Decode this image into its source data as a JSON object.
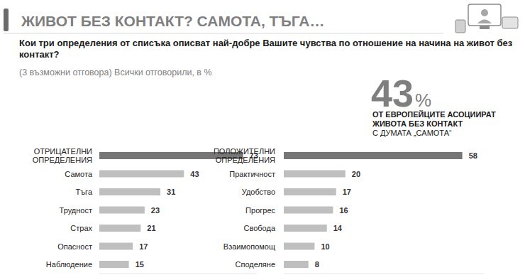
{
  "header": {
    "title": "ЖИВОТ БЕЗ КОНТАКТ? САМОТА, ТЪГА…",
    "question": "Кои три определения от списъка описват най-добре Вашите чувства по отношение на начина на живот без контакт?",
    "note": "(3 възможни отговора) Всички отговорили, в %",
    "callout": {
      "value": 43,
      "unit": "%",
      "lines": [
        "ОТ ЕВРОПЕЙЦИТЕ АСОЦИИРАТ",
        "ЖИВОТА БЕЗ КОНТАКТ",
        "С ДУМАТА „САМОТА“"
      ]
    }
  },
  "chart_data": [
    {
      "type": "bar",
      "orientation": "horizontal",
      "categories": [
        "ОТРИЦАТЕЛНИ ОПРЕДЕЛЕНИЯ",
        "Самота",
        "Тъга",
        "Трудност",
        "Страх",
        "Опасност",
        "Наблюдение"
      ],
      "values": [
        73,
        43,
        31,
        23,
        21,
        17,
        15
      ],
      "colors": [
        "#767676",
        "#bfbfbf",
        "#bfbfbf",
        "#bfbfbf",
        "#bfbfbf",
        "#bfbfbf",
        "#bfbfbf"
      ],
      "xlim": [
        0,
        80
      ],
      "data_labels": true,
      "tick_labels": "y",
      "grid": false
    },
    {
      "type": "bar",
      "orientation": "horizontal",
      "categories": [
        "ПОЛОЖИТЕЛНИ ОПРЕДЕЛЕНИЯ",
        "Практичност",
        "Удобство",
        "Прогрес",
        "Свобода",
        "Взаимопомощ",
        "Споделяне"
      ],
      "values": [
        58,
        20,
        17,
        16,
        14,
        10,
        8
      ],
      "colors": [
        "#767676",
        "#bfbfbf",
        "#bfbfbf",
        "#bfbfbf",
        "#bfbfbf",
        "#bfbfbf",
        "#bfbfbf"
      ],
      "xlim": [
        0,
        65
      ],
      "data_labels": true,
      "tick_labels": "y",
      "grid": false
    }
  ]
}
